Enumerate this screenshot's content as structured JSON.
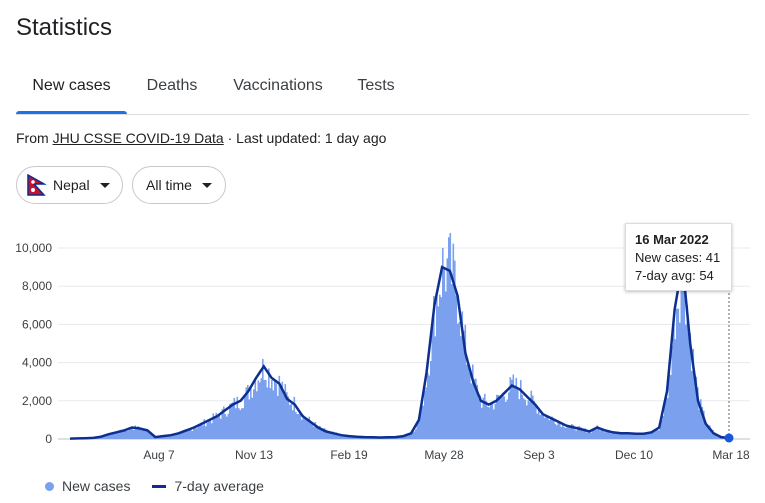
{
  "header": {
    "title": "Statistics"
  },
  "tabs": [
    {
      "label": "New cases",
      "active": true
    },
    {
      "label": "Deaths"
    },
    {
      "label": "Vaccinations"
    },
    {
      "label": "Tests"
    }
  ],
  "source": {
    "prefix": "From ",
    "link": "JHU CSSE COVID-19 Data",
    "suffix": " · Last updated: 1 day ago"
  },
  "filters": {
    "country": "Nepal",
    "country_icon": "nepal-flag-icon",
    "range": "All time",
    "range_icon": "caret-down-icon"
  },
  "tooltip": {
    "date": "16 Mar 2022",
    "new_cases": "New cases: 41",
    "avg": "7-day avg: 54"
  },
  "legend": {
    "bars": "New cases",
    "line": "7-day average"
  },
  "colors": {
    "bars": "#7aa0ee",
    "line": "#0d2f8f",
    "accent": "#1a73e8",
    "grid": "#e8eaed"
  },
  "chart_data": {
    "type": "bar",
    "ylim": [
      0,
      10000
    ],
    "yticks": [
      0,
      2000,
      4000,
      6000,
      8000,
      10000
    ],
    "ytick_labels": [
      "0",
      "2,000",
      "4,000",
      "6,000",
      "8,000",
      "10,000"
    ],
    "xtick_labels": [
      {
        "label": "Aug 7",
        "week": 28
      },
      {
        "label": "Nov 13",
        "week": 42
      },
      {
        "label": "Feb 19",
        "week": 56
      },
      {
        "label": "May 28",
        "week": 70
      },
      {
        "label": "Sep 3",
        "week": 84
      },
      {
        "label": "Dec 10",
        "week": 98
      },
      {
        "label": "Mar 18",
        "week": 112
      }
    ],
    "series": [
      {
        "name": "New cases"
      },
      {
        "name": "7-day average"
      }
    ],
    "x_unit": "week",
    "weekly_new_cases_avg": [
      20,
      30,
      40,
      60,
      120,
      250,
      350,
      450,
      600,
      550,
      450,
      100,
      150,
      200,
      300,
      450,
      600,
      800,
      1000,
      1200,
      1500,
      1800,
      2000,
      2500,
      3200,
      3800,
      3200,
      2900,
      2100,
      1800,
      1200,
      900,
      600,
      400,
      300,
      200,
      150,
      120,
      100,
      90,
      80,
      90,
      100,
      150,
      300,
      1000,
      3500,
      7000,
      9000,
      8800,
      7500,
      4500,
      3000,
      2000,
      1800,
      2000,
      2400,
      2800,
      2600,
      2200,
      1800,
      1300,
      1100,
      900,
      700,
      600,
      500,
      400,
      600,
      450,
      350,
      300,
      300,
      280,
      280,
      350,
      600,
      2500,
      6800,
      9200,
      5000,
      2000,
      800,
      300,
      100,
      54
    ],
    "highlight": {
      "date": "16 Mar 2022",
      "new_cases": 41,
      "avg": 54
    }
  }
}
